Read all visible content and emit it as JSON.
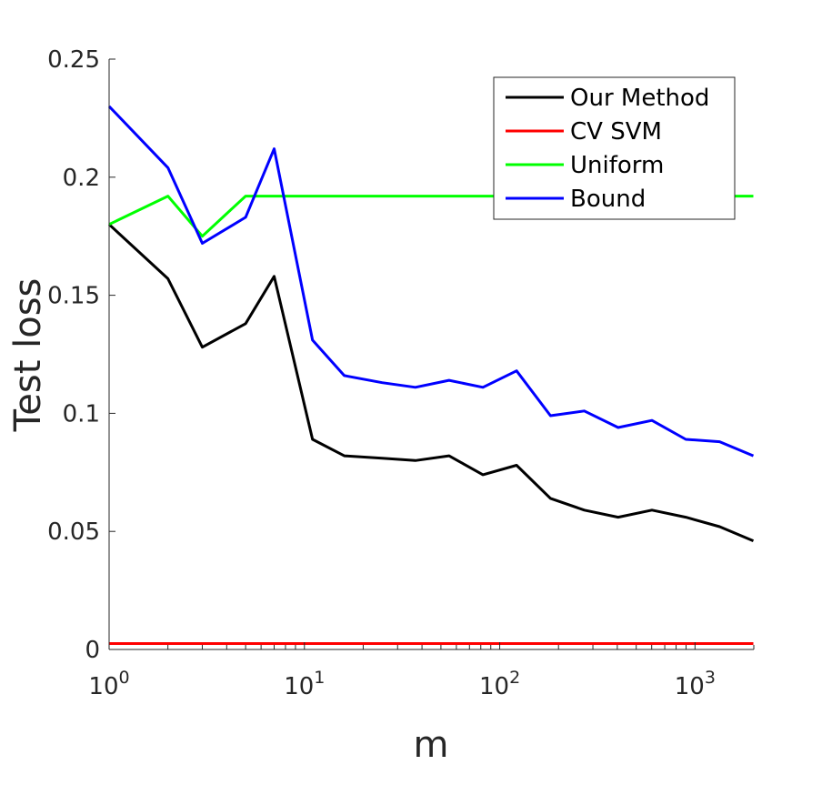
{
  "chart_data": {
    "type": "line",
    "x_scale": "log",
    "xlabel": "m",
    "ylabel": "Test loss",
    "xlim": [
      1,
      2000
    ],
    "ylim": [
      0,
      0.25
    ],
    "yticks": [
      {
        "value": 0,
        "label": "0"
      },
      {
        "value": 0.05,
        "label": "0.05"
      },
      {
        "value": 0.1,
        "label": "0.1"
      },
      {
        "value": 0.15,
        "label": "0.15"
      },
      {
        "value": 0.2,
        "label": "0.2"
      },
      {
        "value": 0.25,
        "label": "0.25"
      }
    ],
    "xticks": [
      {
        "value": 1,
        "base": "10",
        "exp": "0"
      },
      {
        "value": 10,
        "base": "10",
        "exp": "1"
      },
      {
        "value": 100,
        "base": "10",
        "exp": "2"
      },
      {
        "value": 1000,
        "base": "10",
        "exp": "3"
      }
    ],
    "legend_position": "top-right",
    "grid": false,
    "x": [
      1,
      2,
      3,
      5,
      7,
      11,
      16,
      25,
      37,
      55,
      82,
      122,
      182,
      271,
      404,
      602,
      897,
      1336,
      1990
    ],
    "series": [
      {
        "name": "Our Method",
        "color": "#000000",
        "values": [
          0.18,
          0.157,
          0.128,
          0.138,
          0.158,
          0.089,
          0.082,
          0.081,
          0.08,
          0.082,
          0.074,
          0.078,
          0.064,
          0.059,
          0.056,
          0.059,
          0.056,
          0.052,
          0.046
        ]
      },
      {
        "name": "CV SVM",
        "color": "#ff0000",
        "values": [
          0.0025,
          0.0025,
          0.0025,
          0.0025,
          0.0025,
          0.0025,
          0.0025,
          0.0025,
          0.0025,
          0.0025,
          0.0025,
          0.0025,
          0.0025,
          0.0025,
          0.0025,
          0.0025,
          0.0025,
          0.0025,
          0.0025
        ]
      },
      {
        "name": "Uniform",
        "color": "#00ff00",
        "values": [
          0.18,
          0.192,
          0.175,
          0.192,
          0.192,
          0.192,
          0.192,
          0.192,
          0.192,
          0.192,
          0.192,
          0.192,
          0.192,
          0.192,
          0.192,
          0.192,
          0.192,
          0.192,
          0.192
        ]
      },
      {
        "name": "Bound",
        "color": "#0000ff",
        "values": [
          0.23,
          0.204,
          0.172,
          0.183,
          0.212,
          0.131,
          0.116,
          0.113,
          0.111,
          0.114,
          0.111,
          0.118,
          0.099,
          0.101,
          0.094,
          0.097,
          0.089,
          0.088,
          0.082
        ]
      }
    ]
  }
}
